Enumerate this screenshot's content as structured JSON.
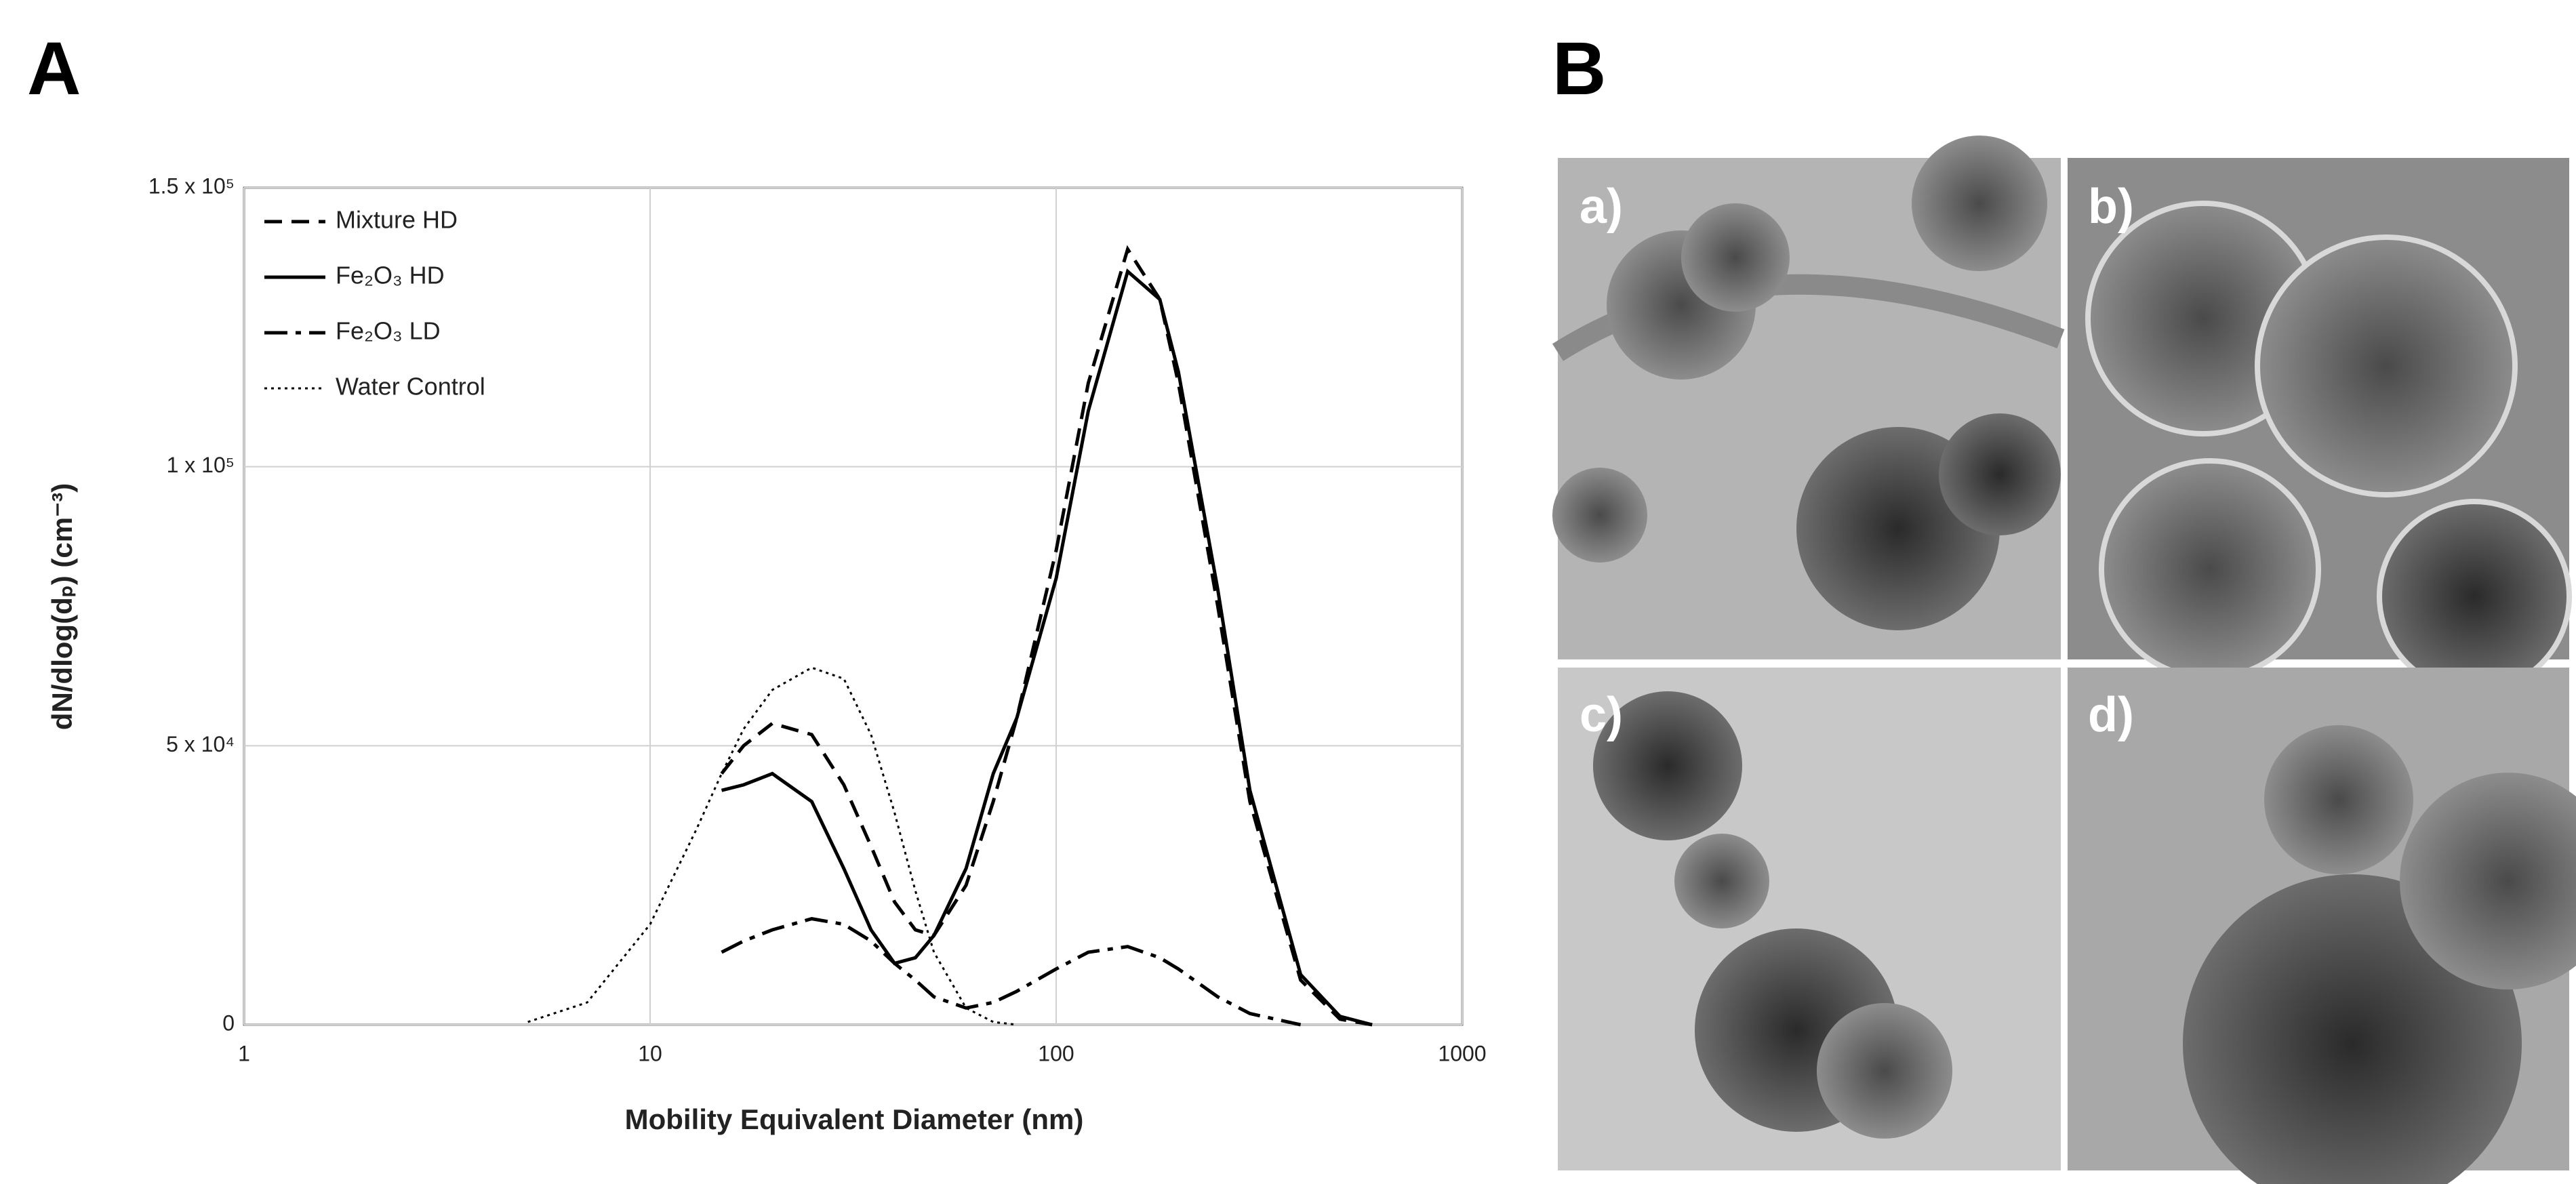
{
  "panel_labels": [
    "A",
    "B"
  ],
  "micrograph_labels": [
    "a)",
    "b)",
    "c)",
    "d)"
  ],
  "chart_data": {
    "type": "line",
    "xlabel": "Mobility Equivalent Diameter (nm)",
    "ylabel": "dN/dlog(dₚ) (cm⁻³)",
    "x": [
      5,
      7,
      10,
      13,
      15,
      17,
      20,
      25,
      30,
      35,
      40,
      45,
      50,
      60,
      70,
      80,
      100,
      120,
      150,
      180,
      200,
      250,
      300,
      400,
      500,
      600
    ],
    "xscale": "log",
    "xlim": [
      1,
      1000
    ],
    "xticks": [
      1,
      10,
      100,
      1000
    ],
    "ylim": [
      0,
      150000
    ],
    "yticks": [
      0,
      {
        "value": 50000,
        "label": "5 x 10⁴"
      },
      {
        "value": 100000,
        "label": "1 x 10⁵"
      },
      {
        "value": 150000,
        "label": "1.5 x 10⁵"
      }
    ],
    "grid": true,
    "legend": "upper left",
    "series": [
      {
        "name": "Mixture HD",
        "color": "#000000",
        "style": "dashed",
        "values": [
          null,
          null,
          null,
          null,
          45000,
          50000,
          54000,
          52000,
          43000,
          32000,
          22000,
          17000,
          16000,
          25000,
          40000,
          55000,
          85000,
          115000,
          139000,
          130000,
          115000,
          75000,
          40000,
          8000,
          1000,
          0
        ]
      },
      {
        "name": "Fe₂O₃ HD",
        "color": "#000000",
        "style": "solid",
        "values": [
          null,
          null,
          null,
          null,
          42000,
          43000,
          45000,
          40000,
          28000,
          17000,
          11000,
          12000,
          16000,
          28000,
          45000,
          55000,
          80000,
          110000,
          135000,
          130000,
          117000,
          78000,
          42000,
          9000,
          1500,
          0
        ]
      },
      {
        "name": "Fe₂O₃ LD",
        "color": "#000000",
        "style": "dashdot",
        "values": [
          null,
          null,
          null,
          null,
          13000,
          15000,
          17000,
          19000,
          18000,
          15000,
          11000,
          8000,
          5000,
          3000,
          4000,
          6000,
          10000,
          13000,
          14000,
          12000,
          10000,
          5000,
          2000,
          0,
          null,
          null
        ]
      },
      {
        "name": "Water Control",
        "color": "#000000",
        "style": "dotted",
        "values": [
          500,
          4000,
          18000,
          35000,
          45000,
          53000,
          60000,
          64000,
          62000,
          52000,
          38000,
          24000,
          13000,
          3000,
          500,
          0,
          null,
          null,
          null,
          null,
          null,
          null,
          null,
          null,
          null,
          null
        ]
      }
    ]
  }
}
